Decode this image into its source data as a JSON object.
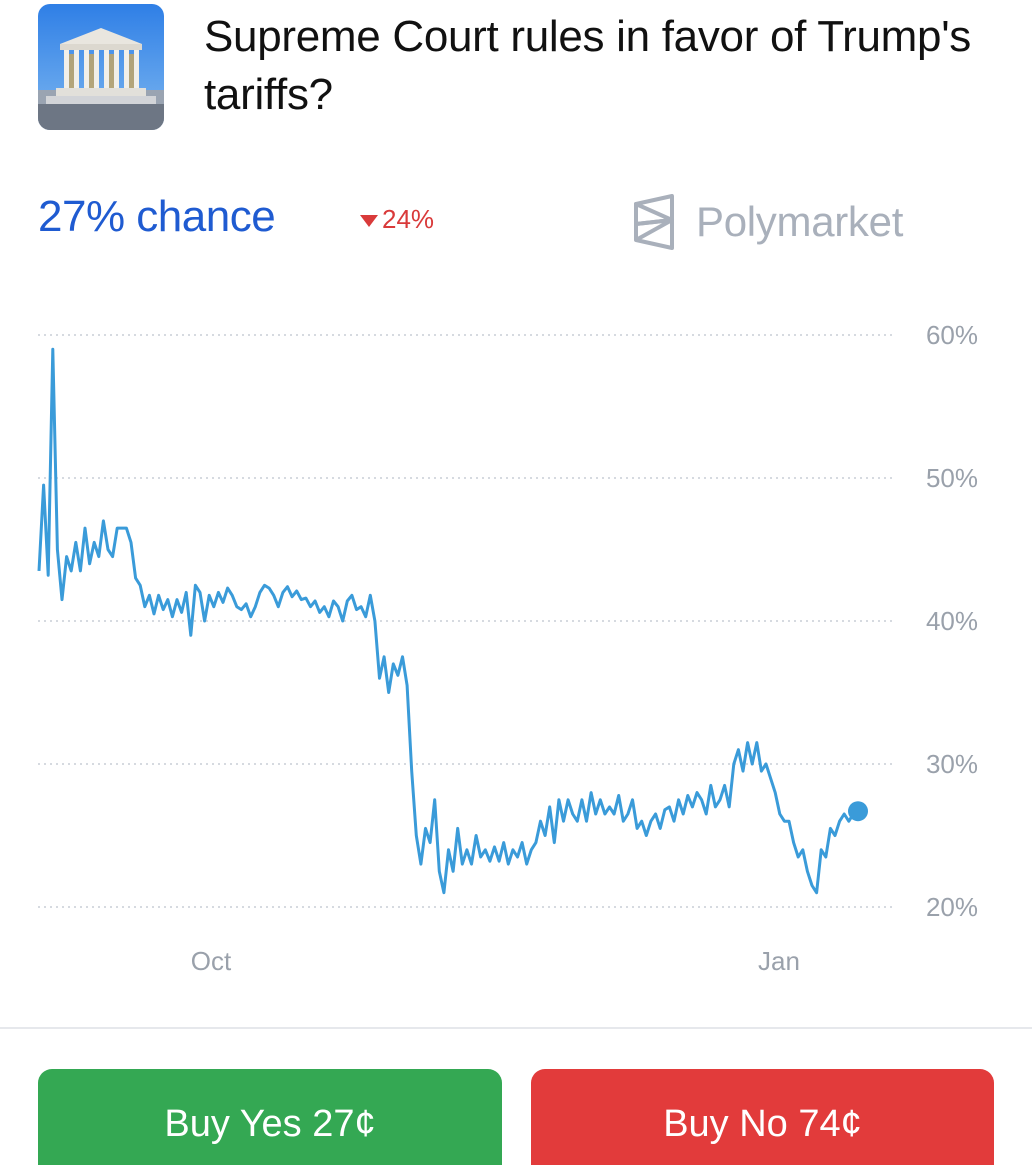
{
  "market": {
    "title": "Supreme Court rules in favor of Trump's tariffs?",
    "thumbnail_icon": "supreme-court-building-image"
  },
  "stats": {
    "chance_label": "27% chance",
    "change_label": "24%",
    "change_direction": "down",
    "brand_name": "Polymarket",
    "brand_icon": "polymarket-logo-icon"
  },
  "colors": {
    "chance_blue": "#1f5bd1",
    "line_blue": "#3a9bd9",
    "down_red": "#d93a3a",
    "yes_green": "#34a853",
    "no_red": "#e23b3b"
  },
  "chart_data": {
    "type": "line",
    "ylim": [
      20,
      60
    ],
    "yticks": [
      "60%",
      "50%",
      "40%",
      "30%",
      "20%"
    ],
    "ytick_values": [
      60,
      50,
      40,
      30,
      20
    ],
    "xticks": [
      "Oct",
      "Jan"
    ],
    "grid": true,
    "series": [
      {
        "values": [
          43.5,
          49.5,
          43.2,
          59.0,
          45.0,
          41.5,
          44.5,
          43.5,
          45.5,
          43.5,
          46.5,
          44.0,
          45.5,
          44.5,
          47.0,
          45.0,
          44.5,
          46.5,
          46.5,
          46.5,
          45.5,
          43.0,
          42.5,
          41.0,
          41.8,
          40.5,
          41.8,
          40.8,
          41.5,
          40.3,
          41.5,
          40.6,
          42.0,
          39.0,
          42.5,
          42.0,
          40.0,
          41.8,
          41.0,
          42.0,
          41.3,
          42.3,
          41.8,
          41.0,
          40.8,
          41.2,
          40.3,
          41.0,
          42.0,
          42.5,
          42.3,
          41.8,
          41.0,
          42.0,
          42.4,
          41.7,
          42.1,
          41.5,
          41.6,
          41.0,
          41.4,
          40.6,
          41.0,
          40.3,
          41.4,
          41.0,
          40.0,
          41.4,
          41.8,
          40.8,
          41.0,
          40.3,
          41.8,
          40.0,
          36.0,
          37.5,
          35.0,
          37.0,
          36.2,
          37.5,
          35.5,
          29.5,
          25.0,
          23.0,
          25.5,
          24.5,
          27.5,
          22.5,
          21.0,
          24.0,
          22.5,
          25.5,
          23.0,
          24.0,
          23.0,
          25.0,
          23.5,
          24.0,
          23.2,
          24.2,
          23.2,
          24.5,
          23.0,
          24.0,
          23.5,
          24.5,
          23.0,
          24.0,
          24.5,
          26.0,
          25.0,
          27.0,
          24.5,
          27.5,
          26.0,
          27.5,
          26.5,
          26.0,
          27.5,
          26.0,
          28.0,
          26.5,
          27.5,
          26.5,
          27.0,
          26.5,
          27.8,
          26.0,
          26.5,
          27.5,
          25.5,
          26.0,
          25.0,
          26.0,
          26.5,
          25.5,
          26.8,
          27.0,
          26.0,
          27.5,
          26.5,
          27.8,
          27.0,
          28.0,
          27.5,
          26.5,
          28.5,
          27.0,
          27.5,
          28.5,
          27.0,
          30.0,
          31.0,
          29.5,
          31.5,
          30.0,
          31.5,
          29.5,
          30.0,
          29.0,
          28.0,
          26.5,
          26.0,
          26.0,
          24.5,
          23.5,
          24.0,
          22.5,
          21.5,
          21.0,
          24.0,
          23.5,
          25.5,
          25.0,
          26.0,
          26.5,
          26.0,
          26.5,
          26.7
        ]
      }
    ]
  },
  "buttons": {
    "yes_label": "Buy Yes 27¢",
    "no_label": "Buy No 74¢"
  }
}
